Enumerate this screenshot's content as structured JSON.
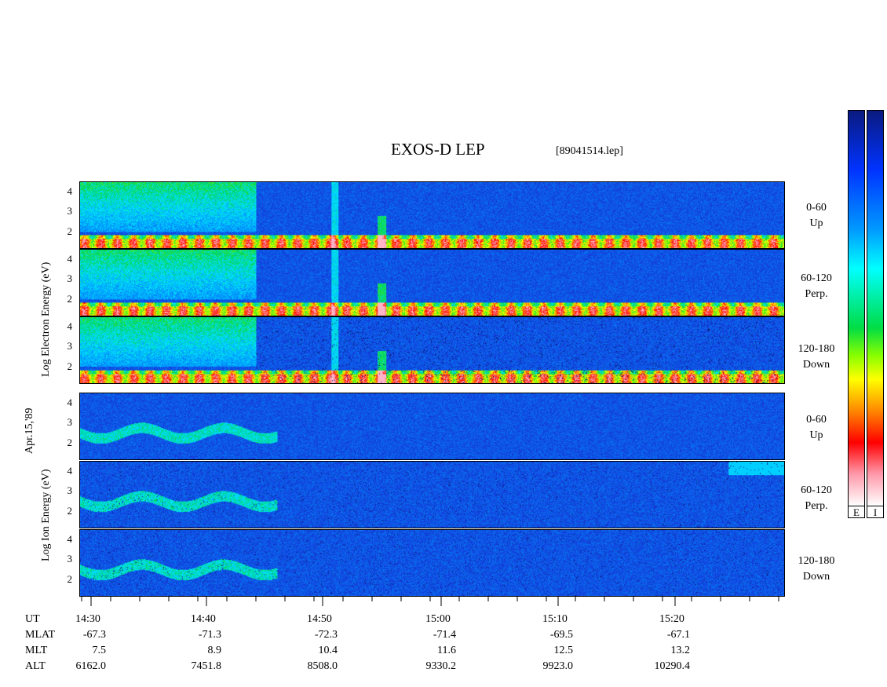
{
  "header": {
    "title": "EXOS-D LEP",
    "file": "[89041514.lep]"
  },
  "electron": {
    "ylabel_parts": [
      "Log",
      "Electron",
      "Energy",
      "(eV)"
    ],
    "ylabel": "Log Electron Energy (eV)",
    "panels": [
      {
        "label_line1": "0-60",
        "label_line2": "Up"
      },
      {
        "label_line1": "60-120",
        "label_line2": "Perp."
      },
      {
        "label_line1": "120-180",
        "label_line2": "Down"
      }
    ]
  },
  "ion": {
    "ylabel": "Log Ion Energy (eV)",
    "panels": [
      {
        "label_line1": "0-60",
        "label_line2": "Up"
      },
      {
        "label_line1": "60-120",
        "label_line2": "Perp."
      },
      {
        "label_line1": "120-180",
        "label_line2": "Down"
      }
    ]
  },
  "date_label": "Apr.15,'89",
  "colorbar": {
    "labels": [
      "E",
      "I"
    ]
  },
  "axis": {
    "rows": [
      "UT",
      "MLAT",
      "MLT",
      "ALT"
    ],
    "columns": [
      {
        "UT": "14:30",
        "MLAT": "-67.3",
        "MLT": "7.5",
        "ALT": "6162.0"
      },
      {
        "UT": "14:40",
        "MLAT": "-71.3",
        "MLT": "8.9",
        "ALT": "7451.8"
      },
      {
        "UT": "14:50",
        "MLAT": "-72.3",
        "MLT": "10.4",
        "ALT": "8508.0"
      },
      {
        "UT": "15:00",
        "MLAT": "-71.4",
        "MLT": "11.6",
        "ALT": "9330.2"
      },
      {
        "UT": "15:10",
        "MLAT": "-69.5",
        "MLT": "12.5",
        "ALT": "9923.0"
      },
      {
        "UT": "15:20",
        "MLAT": "-67.1",
        "MLT": "13.2",
        "ALT": "10290.4"
      }
    ]
  },
  "chart_data": {
    "type": "heatmap",
    "title": "EXOS-D LEP",
    "x": [
      "14:30",
      "14:40",
      "14:50",
      "15:00",
      "15:10",
      "15:20"
    ],
    "xlabel": "UT",
    "y_ticks": [
      2,
      3,
      4
    ],
    "series": [
      {
        "name": "Electron 0-60 Up"
      },
      {
        "name": "Electron 60-120 Perp."
      },
      {
        "name": "Electron 120-180 Down"
      },
      {
        "name": "Ion 0-60 Up"
      },
      {
        "name": "Ion 60-120 Perp."
      },
      {
        "name": "Ion 120-180 Down"
      }
    ],
    "colors": {
      "low": "#0a1a7a",
      "mid": "#00e0ff",
      "high": "#ff0000",
      "peak": "#ffffff"
    }
  }
}
